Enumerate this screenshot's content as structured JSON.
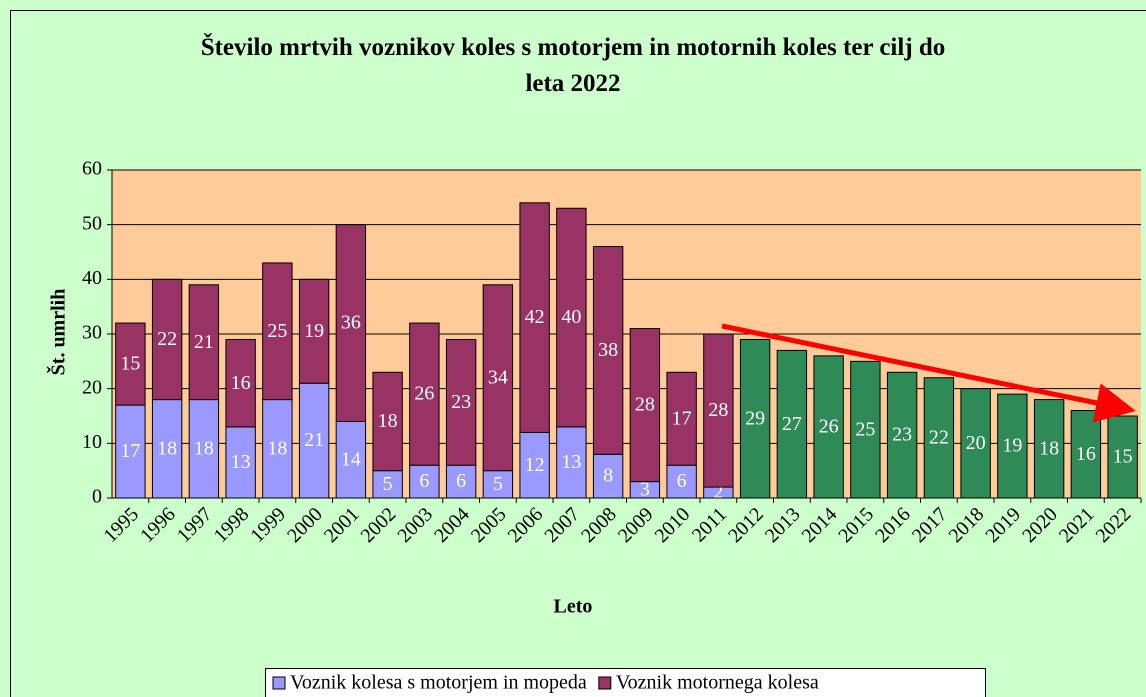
{
  "chart_data": {
    "type": "stacked_bar",
    "title": "Število mrtvih voznikov koles s motorjem in motornih koles ter cilj do leta 2022",
    "x_label": "Leto",
    "y_label": "Št. umrlih",
    "categories": [
      "1995",
      "1996",
      "1997",
      "1998",
      "1999",
      "2000",
      "2001",
      "2002",
      "2003",
      "2004",
      "2005",
      "2006",
      "2007",
      "2008",
      "2009",
      "2010",
      "2011",
      "2012",
      "2013",
      "2014",
      "2015",
      "2016",
      "2017",
      "2018",
      "2019",
      "2020",
      "2021",
      "2022"
    ],
    "series": [
      {
        "name": "Voznik kolesa s motorjem in mopeda",
        "color": "#9999ff",
        "values": [
          17,
          18,
          18,
          13,
          18,
          21,
          14,
          5,
          6,
          6,
          5,
          12,
          13,
          8,
          3,
          6,
          2,
          null,
          null,
          null,
          null,
          null,
          null,
          null,
          null,
          null,
          null,
          null
        ]
      },
      {
        "name": "Voznik motornega kolesa",
        "color": "#993366",
        "values": [
          15,
          22,
          21,
          16,
          25,
          19,
          36,
          18,
          26,
          23,
          34,
          42,
          40,
          38,
          28,
          17,
          28,
          null,
          null,
          null,
          null,
          null,
          null,
          null,
          null,
          null,
          null,
          null
        ]
      },
      {
        "color": "#2e8b57",
        "values": [
          null,
          null,
          null,
          null,
          null,
          null,
          null,
          null,
          null,
          null,
          null,
          null,
          null,
          null,
          null,
          null,
          null,
          29,
          27,
          26,
          25,
          23,
          22,
          20,
          19,
          18,
          16,
          15
        ]
      }
    ],
    "ylim": [
      0,
      60
    ],
    "yticks": [
      0,
      10,
      20,
      30,
      40,
      50,
      60
    ],
    "grid": true
  }
}
